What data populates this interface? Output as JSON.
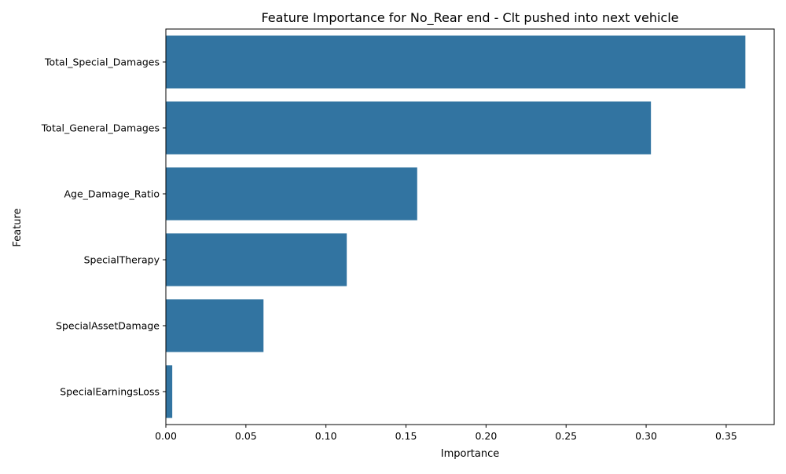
{
  "chart_data": {
    "type": "bar",
    "orientation": "horizontal",
    "title": "Feature Importance for No_Rear end - Clt pushed into next vehicle",
    "xlabel": "Importance",
    "ylabel": "Feature",
    "categories": [
      "Total_Special_Damages",
      "Total_General_Damages",
      "Age_Damage_Ratio",
      "SpecialTherapy",
      "SpecialAssetDamage",
      "SpecialEarningsLoss"
    ],
    "values": [
      0.362,
      0.303,
      0.157,
      0.113,
      0.061,
      0.004
    ],
    "xlim": [
      0,
      0.38
    ],
    "xticks": [
      "0.00",
      "0.05",
      "0.10",
      "0.15",
      "0.20",
      "0.25",
      "0.30",
      "0.35"
    ],
    "bar_color": "#3274a1",
    "grid": false,
    "legend": "none"
  }
}
